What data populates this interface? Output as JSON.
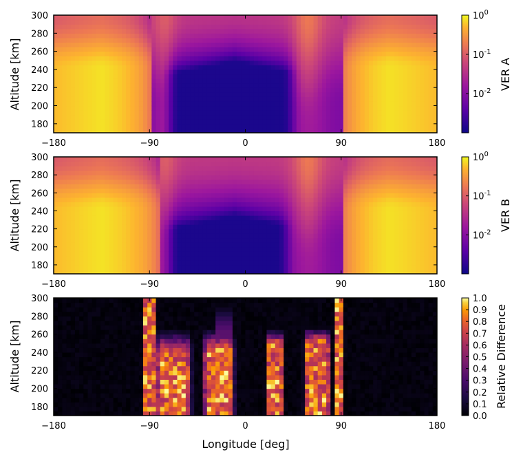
{
  "chart_data": [
    {
      "type": "heatmap",
      "title": "",
      "xlabel": "",
      "ylabel": "Altitude [km]",
      "xlim": [
        -180,
        180
      ],
      "ylim": [
        170,
        300
      ],
      "x_ticks": [
        "−180",
        "−90",
        "0",
        "90",
        "180"
      ],
      "x_tick_values": [
        -180,
        -90,
        0,
        90,
        180
      ],
      "y_ticks": [
        "180",
        "200",
        "220",
        "240",
        "260",
        "280",
        "300"
      ],
      "y_tick_values": [
        180,
        200,
        220,
        240,
        260,
        280,
        300
      ],
      "colorbar": {
        "label": "VER A",
        "scale": "log",
        "range": [
          0.001,
          1
        ],
        "ticks": [
          "10",
          "10",
          "10"
        ],
        "tick_exponents": [
          "0",
          "-1",
          "-2"
        ],
        "tick_values": [
          1,
          0.1,
          0.01
        ]
      },
      "colormap": "plasma",
      "features": {
        "nightside_start_lon": -87,
        "nightside_end_lon": 90,
        "dark_core_lon": [
          -70,
          45
        ],
        "dark_core_top_alt": 250
      }
    },
    {
      "type": "heatmap",
      "title": "",
      "xlabel": "",
      "ylabel": "Altitude [km]",
      "xlim": [
        -180,
        180
      ],
      "ylim": [
        170,
        300
      ],
      "x_ticks": [
        "−180",
        "−90",
        "0",
        "90",
        "180"
      ],
      "x_tick_values": [
        -180,
        -90,
        0,
        90,
        180
      ],
      "y_ticks": [
        "180",
        "200",
        "220",
        "240",
        "260",
        "280",
        "300"
      ],
      "y_tick_values": [
        180,
        200,
        220,
        240,
        260,
        280,
        300
      ],
      "colorbar": {
        "label": "VER B",
        "scale": "log",
        "range": [
          0.001,
          1
        ],
        "ticks": [
          "10",
          "10",
          "10"
        ],
        "tick_exponents": [
          "0",
          "-1",
          "-2"
        ],
        "tick_values": [
          1,
          0.1,
          0.01
        ]
      },
      "colormap": "plasma",
      "features": {
        "nightside_start_lon": -80,
        "nightside_end_lon": 90,
        "dark_core_lon": [
          -70,
          40
        ],
        "dark_core_top_alt": 235
      }
    },
    {
      "type": "heatmap",
      "title": "",
      "xlabel": "Longitude [deg]",
      "ylabel": "Altitude [km]",
      "xlim": [
        -180,
        180
      ],
      "ylim": [
        170,
        300
      ],
      "x_ticks": [
        "−180",
        "−90",
        "0",
        "90",
        "180"
      ],
      "x_tick_values": [
        -180,
        -90,
        0,
        90,
        180
      ],
      "y_ticks": [
        "180",
        "200",
        "220",
        "240",
        "260",
        "280",
        "300"
      ],
      "y_tick_values": [
        180,
        200,
        220,
        240,
        260,
        280,
        300
      ],
      "colorbar": {
        "label": "Relative Difference",
        "scale": "linear",
        "range": [
          0,
          1
        ],
        "ticks": [
          "1.0",
          "0.9",
          "0.8",
          "0.7",
          "0.6",
          "0.5",
          "0.4",
          "0.3",
          "0.2",
          "0.1",
          "0.0"
        ],
        "tick_values": [
          1.0,
          0.9,
          0.8,
          0.7,
          0.6,
          0.5,
          0.4,
          0.3,
          0.2,
          0.1,
          0.0
        ]
      },
      "colormap": "inferno",
      "features": {
        "high_bands_lon": [
          [
            -95,
            -85
          ],
          [
            -85,
            -50
          ],
          [
            -40,
            -10
          ],
          [
            20,
            35
          ],
          [
            55,
            80
          ],
          [
            84,
            90
          ]
        ]
      }
    }
  ]
}
